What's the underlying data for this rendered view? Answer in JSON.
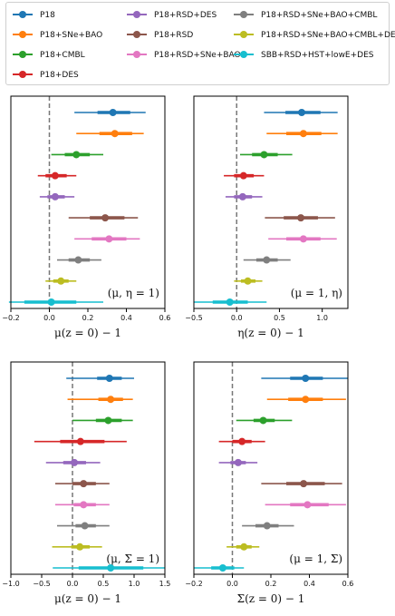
{
  "legend": [
    {
      "label": "P18",
      "color": "#1f77b4"
    },
    {
      "label": "P18+SNe+BAO",
      "color": "#ff7f0e"
    },
    {
      "label": "P18+CMBL",
      "color": "#2ca02c"
    },
    {
      "label": "P18+DES",
      "color": "#d62728"
    },
    {
      "label": "P18+RSD+DES",
      "color": "#9467bd"
    },
    {
      "label": "P18+RSD",
      "color": "#8c564b"
    },
    {
      "label": "P18+RSD+SNe+BAO",
      "color": "#e377c2"
    },
    {
      "label": "P18+RSD+SNe+BAO+CMBL",
      "color": "#7f7f7f"
    },
    {
      "label": "P18+RSD+SNe+BAO+CMBL+DES",
      "color": "#bcbd22"
    },
    {
      "label": "SBB+RSD+HST+lowE+DES",
      "color": "#17becf"
    }
  ],
  "chart_data": [
    {
      "type": "errorbar",
      "xlabel": "μ(z = 0) − 1",
      "annotation": "(μ, η = 1)",
      "xlim": [
        -0.2,
        0.6
      ],
      "xticks": [
        "−0.2",
        "0.0",
        "0.2",
        "0.4",
        "0.6"
      ],
      "xtick_values": [
        -0.2,
        0.0,
        0.2,
        0.4,
        0.6
      ],
      "reference_line": 0,
      "series": [
        {
          "center": 0.33,
          "inner": [
            0.25,
            0.42
          ],
          "outer": [
            0.13,
            0.5
          ]
        },
        {
          "center": 0.34,
          "inner": [
            0.26,
            0.43
          ],
          "outer": [
            0.14,
            0.49
          ]
        },
        {
          "center": 0.14,
          "inner": [
            0.08,
            0.21
          ],
          "outer": [
            0.01,
            0.28
          ]
        },
        {
          "center": 0.03,
          "inner": [
            -0.02,
            0.09
          ],
          "outer": [
            -0.06,
            0.14
          ]
        },
        {
          "center": 0.03,
          "inner": [
            -0.01,
            0.08
          ],
          "outer": [
            -0.05,
            0.13
          ]
        },
        {
          "center": 0.29,
          "inner": [
            0.21,
            0.39
          ],
          "outer": [
            0.1,
            0.46
          ]
        },
        {
          "center": 0.31,
          "inner": [
            0.22,
            0.4
          ],
          "outer": [
            0.13,
            0.47
          ]
        },
        {
          "center": 0.15,
          "inner": [
            0.1,
            0.21
          ],
          "outer": [
            0.04,
            0.27
          ]
        },
        {
          "center": 0.06,
          "inner": [
            0.02,
            0.1
          ],
          "outer": [
            -0.02,
            0.14
          ]
        },
        {
          "center": 0.01,
          "inner": [
            -0.13,
            0.14
          ],
          "outer": [
            -0.21,
            0.28
          ]
        }
      ]
    },
    {
      "type": "errorbar",
      "xlabel": "η(z = 0) − 1",
      "annotation": "(μ = 1, η)",
      "xlim": [
        -0.5,
        1.3
      ],
      "xticks": [
        "−0.5",
        "0.0",
        "0.5",
        "1.0"
      ],
      "xtick_values": [
        -0.5,
        0.0,
        0.5,
        1.0
      ],
      "reference_line": 0,
      "series": [
        {
          "center": 0.76,
          "inner": [
            0.57,
            0.98
          ],
          "outer": [
            0.32,
            1.18
          ]
        },
        {
          "center": 0.78,
          "inner": [
            0.58,
            0.99
          ],
          "outer": [
            0.35,
            1.18
          ]
        },
        {
          "center": 0.32,
          "inner": [
            0.18,
            0.48
          ],
          "outer": [
            0.04,
            0.65
          ]
        },
        {
          "center": 0.08,
          "inner": [
            -0.03,
            0.2
          ],
          "outer": [
            -0.15,
            0.32
          ]
        },
        {
          "center": 0.07,
          "inner": [
            -0.03,
            0.18
          ],
          "outer": [
            -0.13,
            0.3
          ]
        },
        {
          "center": 0.75,
          "inner": [
            0.55,
            0.95
          ],
          "outer": [
            0.33,
            1.15
          ]
        },
        {
          "center": 0.78,
          "inner": [
            0.58,
            0.98
          ],
          "outer": [
            0.37,
            1.17
          ]
        },
        {
          "center": 0.35,
          "inner": [
            0.23,
            0.48
          ],
          "outer": [
            0.08,
            0.63
          ]
        },
        {
          "center": 0.13,
          "inner": [
            0.05,
            0.22
          ],
          "outer": [
            -0.03,
            0.3
          ]
        },
        {
          "center": -0.08,
          "inner": [
            -0.28,
            0.13
          ],
          "outer": [
            -0.5,
            0.35
          ]
        }
      ]
    },
    {
      "type": "errorbar",
      "xlabel": "μ(z = 0) − 1",
      "annotation": "(μ, Σ = 1)",
      "xlim": [
        -1.0,
        1.5
      ],
      "xticks": [
        "−1.0",
        "−0.5",
        "0.0",
        "0.5",
        "1.0",
        "1.5"
      ],
      "xtick_values": [
        -1.0,
        -0.5,
        0.0,
        0.5,
        1.0,
        1.5
      ],
      "reference_line": 0,
      "series": [
        {
          "center": 0.6,
          "inner": [
            0.4,
            0.8
          ],
          "outer": [
            -0.1,
            1.0
          ]
        },
        {
          "center": 0.62,
          "inner": [
            0.42,
            0.82
          ],
          "outer": [
            -0.08,
            0.98
          ]
        },
        {
          "center": 0.58,
          "inner": [
            0.38,
            0.8
          ],
          "outer": [
            0.0,
            0.98
          ]
        },
        {
          "center": 0.13,
          "inner": [
            -0.2,
            0.52
          ],
          "outer": [
            -0.62,
            0.88
          ]
        },
        {
          "center": 0.03,
          "inner": [
            -0.15,
            0.22
          ],
          "outer": [
            -0.43,
            0.45
          ]
        },
        {
          "center": 0.18,
          "inner": [
            0.0,
            0.38
          ],
          "outer": [
            -0.28,
            0.6
          ]
        },
        {
          "center": 0.18,
          "inner": [
            0.02,
            0.38
          ],
          "outer": [
            -0.28,
            0.6
          ]
        },
        {
          "center": 0.2,
          "inner": [
            0.05,
            0.38
          ],
          "outer": [
            -0.25,
            0.6
          ]
        },
        {
          "center": 0.12,
          "inner": [
            -0.02,
            0.28
          ],
          "outer": [
            -0.33,
            0.48
          ]
        },
        {
          "center": 0.62,
          "inner": [
            0.1,
            1.15
          ],
          "outer": [
            -0.32,
            1.5
          ]
        }
      ]
    },
    {
      "type": "errorbar",
      "xlabel": "Σ(z = 0) − 1",
      "annotation": "(μ = 1, Σ)",
      "xlim": [
        -0.2,
        0.6
      ],
      "xticks": [
        "−0.2",
        "0.0",
        "0.2",
        "0.4",
        "0.6"
      ],
      "xtick_values": [
        -0.2,
        0.0,
        0.2,
        0.4,
        0.6
      ],
      "reference_line": 0,
      "series": [
        {
          "center": 0.38,
          "inner": [
            0.3,
            0.47
          ],
          "outer": [
            0.15,
            0.6
          ]
        },
        {
          "center": 0.38,
          "inner": [
            0.29,
            0.47
          ],
          "outer": [
            0.18,
            0.59
          ]
        },
        {
          "center": 0.16,
          "inner": [
            0.11,
            0.22
          ],
          "outer": [
            0.02,
            0.31
          ]
        },
        {
          "center": 0.05,
          "inner": [
            0.0,
            0.1
          ],
          "outer": [
            -0.07,
            0.17
          ]
        },
        {
          "center": 0.03,
          "inner": [
            -0.01,
            0.07
          ],
          "outer": [
            -0.07,
            0.13
          ]
        },
        {
          "center": 0.37,
          "inner": [
            0.28,
            0.48
          ],
          "outer": [
            0.15,
            0.57
          ]
        },
        {
          "center": 0.39,
          "inner": [
            0.3,
            0.5
          ],
          "outer": [
            0.17,
            0.59
          ]
        },
        {
          "center": 0.18,
          "inner": [
            0.12,
            0.24
          ],
          "outer": [
            0.05,
            0.32
          ]
        },
        {
          "center": 0.06,
          "inner": [
            0.02,
            0.1
          ],
          "outer": [
            -0.03,
            0.14
          ]
        },
        {
          "center": -0.05,
          "inner": [
            -0.11,
            0.01
          ],
          "outer": [
            -0.2,
            0.06
          ]
        }
      ]
    }
  ]
}
